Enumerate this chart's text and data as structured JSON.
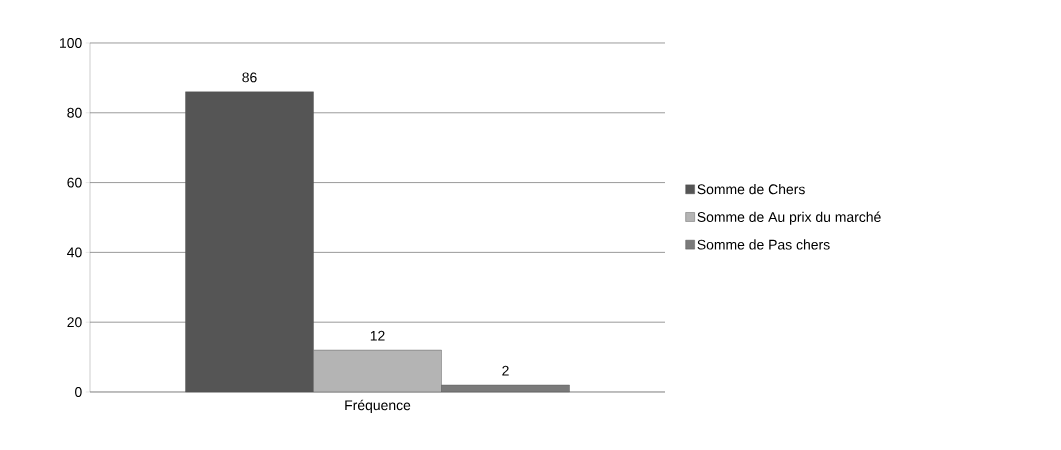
{
  "chart_data": {
    "type": "bar",
    "categories": [
      "Fréquence"
    ],
    "series": [
      {
        "name": "Somme de Chers",
        "color": "#555555",
        "values": [
          86
        ]
      },
      {
        "name": "Somme de Au prix du marché",
        "color": "#b4b4b4",
        "values": [
          12
        ]
      },
      {
        "name": "Somme de Pas chers",
        "color": "#7a7a7a",
        "values": [
          2
        ]
      }
    ],
    "ylim": [
      0,
      100
    ],
    "yticks": [
      0,
      20,
      40,
      60,
      80,
      100
    ],
    "grid": "y",
    "legend": "right",
    "data_labels": true
  }
}
